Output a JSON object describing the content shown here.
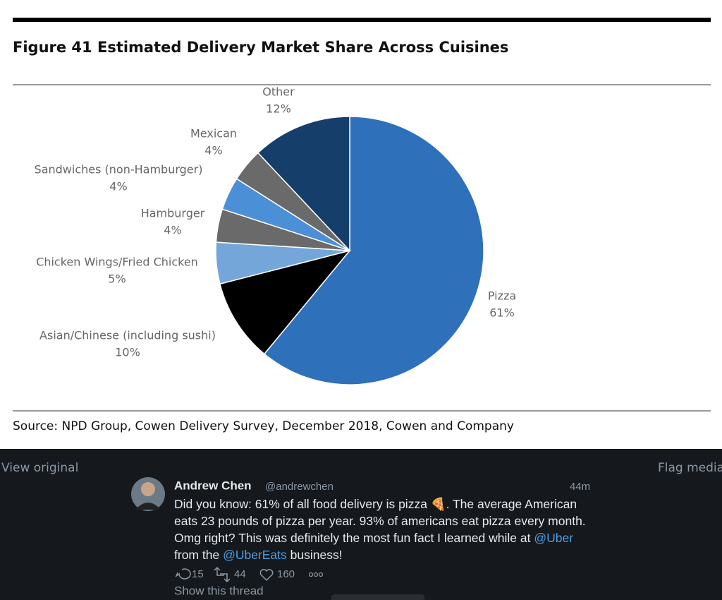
{
  "chart_data": {
    "type": "pie",
    "title": "Figure 41 Estimated Delivery Market Share Across Cuisines",
    "categories": [
      "Pizza",
      "Asian/Chinese (including sushi)",
      "Chicken Wings/Fried Chicken",
      "Hamburger",
      "Sandwiches (non-Hamburger)",
      "Mexican",
      "Other"
    ],
    "values": [
      61,
      10,
      5,
      4,
      4,
      4,
      12
    ],
    "value_labels": [
      "61%",
      "10%",
      "5%",
      "4%",
      "4%",
      "4%",
      "12%"
    ],
    "colors": [
      "#2f70bb",
      "#000000",
      "#74a6da",
      "#6a6a6a",
      "#4b90d6",
      "#6a6a6a",
      "#163e6b"
    ],
    "source": "Source: NPD Group, Cowen Delivery Survey, December 2018, Cowen and Company"
  },
  "viewer": {
    "view_original": "View original",
    "flag_media": "Flag media"
  },
  "tweet": {
    "name": "Andrew Chen",
    "handle": "@andrewchen",
    "time": "44m",
    "text": [
      "Did you know: 61% of all food delivery is pizza 🍕. The average American eats 23 pounds of pizza per year. 93% of americans eat pizza every month. Omg right? This was definitely the most fun fact I learned while at ",
      "@Uber",
      " from the ",
      "@UberEats",
      " business!"
    ],
    "replies": "15",
    "retweets": "44",
    "likes": "160",
    "show_thread": "Show this thread"
  }
}
